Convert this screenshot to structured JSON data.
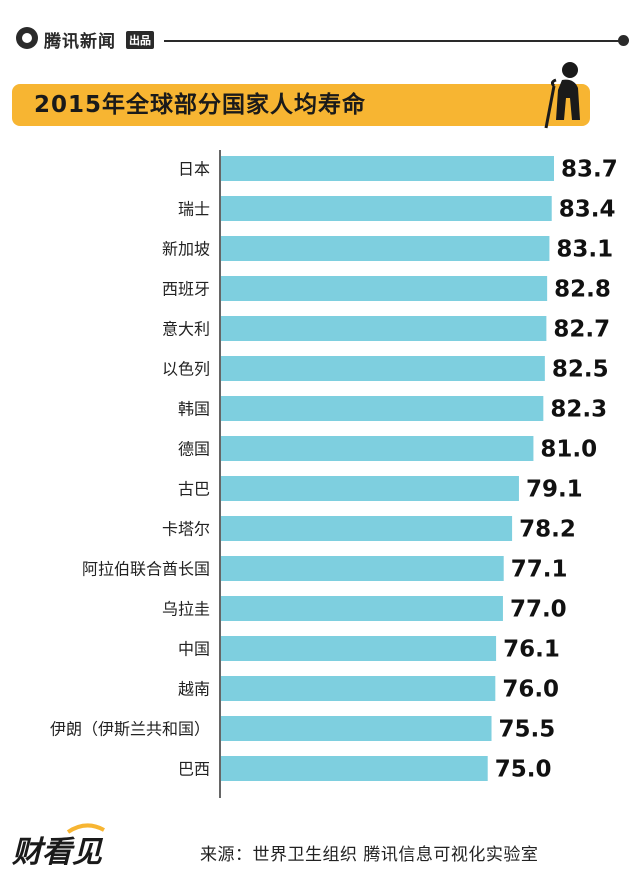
{
  "header": {
    "brand": "腾讯新闻",
    "brand_tag": "出品"
  },
  "title": "2015年全球部分国家人均寿命",
  "icons": {
    "brand_logo": "tencent-news-logo",
    "elder": "elderly-person-icon",
    "footer_logo": "caikanjian-logo"
  },
  "colors": {
    "bar": "#7ecfdf",
    "title_bg": "#f7b532",
    "text": "#222222",
    "axis": "#333333"
  },
  "chart_data": {
    "type": "bar",
    "orientation": "horizontal",
    "title": "2015年全球部分国家人均寿命",
    "categories": [
      "日本",
      "瑞士",
      "新加坡",
      "西班牙",
      "意大利",
      "以色列",
      "韩国",
      "德国",
      "古巴",
      "卡塔尔",
      "阿拉伯联合酋长国",
      "乌拉圭",
      "中国",
      "越南",
      "伊朗（伊斯兰共和国）",
      "巴西"
    ],
    "values": [
      83.7,
      83.4,
      83.1,
      82.8,
      82.7,
      82.5,
      82.3,
      81.0,
      79.1,
      78.2,
      77.1,
      77.0,
      76.1,
      76.0,
      75.5,
      75.0
    ],
    "value_labels": [
      "83.7",
      "83.4",
      "83.1",
      "82.8",
      "82.7",
      "82.5",
      "82.3",
      "81.0",
      "79.1",
      "78.2",
      "77.1",
      "77.0",
      "76.1",
      "76.0",
      "75.5",
      "75.0"
    ],
    "xlim": [
      40,
      83.7
    ],
    "grid": false,
    "legend": "none"
  },
  "footer": {
    "source": "来源：世界卫生组织  腾讯信息可视化实验室",
    "logo_text": "财看见"
  }
}
